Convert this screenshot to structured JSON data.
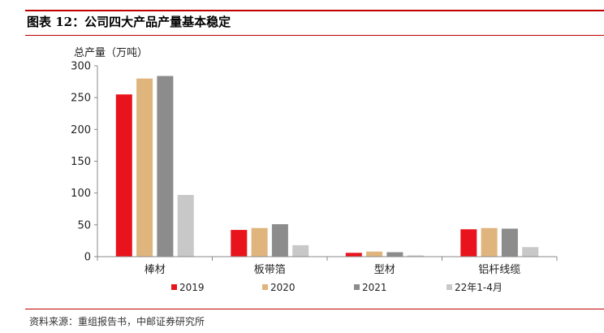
{
  "figure": {
    "title": "图表 12：公司四大产品产量基本稳定",
    "source": "资料来源：重组报告书，中邮证券研究所"
  },
  "chart_data": {
    "type": "bar",
    "ylabel": "总产量（万吨）",
    "ylim": [
      0,
      300
    ],
    "yticks": [
      0,
      50,
      100,
      150,
      200,
      250,
      300
    ],
    "categories": [
      "棒材",
      "板带箔",
      "型材",
      "铝杆线缆"
    ],
    "series": [
      {
        "name": "2019",
        "color": "#e8131c",
        "values": [
          255,
          42,
          6,
          43
        ]
      },
      {
        "name": "2020",
        "color": "#dfb57d",
        "values": [
          280,
          45,
          8,
          45
        ]
      },
      {
        "name": "2021",
        "color": "#8c8c8c",
        "values": [
          284,
          51,
          7,
          44
        ]
      },
      {
        "name": "22年1-4月",
        "color": "#c8c8c8",
        "values": [
          97,
          18,
          2,
          15
        ]
      }
    ],
    "grid": false,
    "legend": "bottom"
  }
}
